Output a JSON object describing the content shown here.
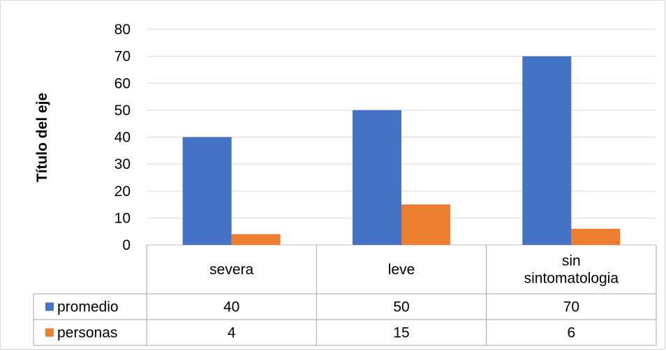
{
  "chart_data": {
    "type": "bar",
    "title": "",
    "xlabel": "",
    "ylabel": "Título del eje",
    "ylim": [
      0,
      80
    ],
    "yticks": [
      0,
      10,
      20,
      30,
      40,
      50,
      60,
      70,
      80
    ],
    "grid": true,
    "categories": [
      {
        "label": "severa",
        "lines": [
          "severa"
        ]
      },
      {
        "label": "leve",
        "lines": [
          "leve"
        ]
      },
      {
        "label": "sin sintomatologia",
        "lines": [
          "sin",
          "sintomatologia"
        ]
      }
    ],
    "series": [
      {
        "name": "promedio",
        "color": "#4472c4",
        "values": [
          40,
          50,
          70
        ]
      },
      {
        "name": "personas",
        "color": "#ed7d31",
        "values": [
          4,
          15,
          6
        ]
      }
    ],
    "legend": "data-table"
  }
}
